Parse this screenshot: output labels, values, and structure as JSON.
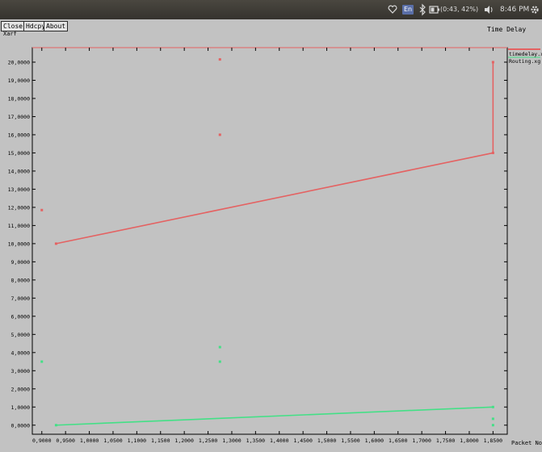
{
  "system_bar": {
    "keyboard_layout": "En",
    "battery": "(0:43, 42%)",
    "clock": "8:46 PM",
    "icons": [
      "heart-icon",
      "bluetooth-icon",
      "battery-icon",
      "speaker-icon",
      "gear-icon"
    ]
  },
  "toolbar": {
    "buttons": [
      "Close",
      "Hdcpy",
      "About"
    ]
  },
  "chart_data": {
    "type": "line",
    "title": "Time Delay",
    "xlabel": "Packet No",
    "ylabel": "Xarf",
    "xlim": [
      0.88,
      1.88
    ],
    "ylim": [
      -0.5,
      20.8
    ],
    "xticks": [
      "0,9000",
      "0,9500",
      "1,0000",
      "1,0500",
      "1,1000",
      "1,1500",
      "1,2000",
      "1,2500",
      "1,3000",
      "1,3500",
      "1,4000",
      "1,4500",
      "1,5000",
      "1,5500",
      "1,6000",
      "1,6500",
      "1,7000",
      "1,7500",
      "1,8000",
      "1,8500"
    ],
    "xtick_values": [
      0.9,
      0.95,
      1.0,
      1.05,
      1.1,
      1.15,
      1.2,
      1.25,
      1.3,
      1.35,
      1.4,
      1.45,
      1.5,
      1.55,
      1.6,
      1.65,
      1.7,
      1.75,
      1.8,
      1.85
    ],
    "yticks": [
      "0,0000",
      "1,0000",
      "2,0000",
      "3,0000",
      "4,0000",
      "5,0000",
      "6,0000",
      "7,0000",
      "8,0000",
      "9,0000",
      "10,0000",
      "11,0000",
      "12,0000",
      "13,0000",
      "14,0000",
      "15,0000",
      "16,0000",
      "17,0000",
      "18,0000",
      "19,0000",
      "20,0000"
    ],
    "ytick_values": [
      0,
      1,
      2,
      3,
      4,
      5,
      6,
      7,
      8,
      9,
      10,
      11,
      12,
      13,
      14,
      15,
      16,
      17,
      18,
      19,
      20
    ],
    "legend_placement": "top-right",
    "series": [
      {
        "name": "timedelay.xg",
        "color": "#e46262",
        "lines": [
          [
            [
              0.93,
              10.0
            ],
            [
              1.85,
              15.0
            ]
          ],
          [
            [
              1.85,
              15.0
            ],
            [
              1.85,
              20.0
            ]
          ]
        ],
        "points": [
          [
            0.9,
            11.85
          ],
          [
            0.93,
            10.0
          ],
          [
            1.275,
            20.15
          ],
          [
            1.275,
            16.0
          ],
          [
            1.85,
            15.0
          ],
          [
            1.85,
            20.0
          ]
        ]
      },
      {
        "name": "Routing.xg",
        "color": "#43e086",
        "lines": [
          [
            [
              0.93,
              0.0
            ],
            [
              1.85,
              1.0
            ]
          ]
        ],
        "points": [
          [
            0.9,
            3.5
          ],
          [
            0.93,
            0.0
          ],
          [
            1.275,
            4.3
          ],
          [
            1.275,
            3.5
          ],
          [
            1.85,
            1.0
          ],
          [
            1.85,
            0.35
          ],
          [
            1.85,
            0.0
          ]
        ]
      }
    ]
  }
}
